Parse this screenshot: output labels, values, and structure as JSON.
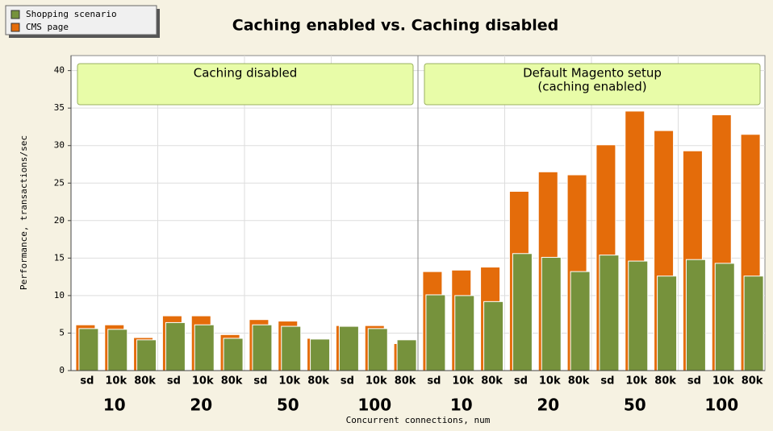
{
  "chart_data": {
    "type": "bar",
    "title": "Caching enabled vs. Caching disabled",
    "ylabel": "Performance, transactions/sec",
    "xlabel": "Concurrent connections, num",
    "categories": [
      "sd",
      "10k",
      "80k",
      "sd",
      "10k",
      "80k",
      "sd",
      "10k",
      "80k",
      "sd",
      "10k",
      "80k",
      "sd",
      "10k",
      "80k",
      "sd",
      "10k",
      "80k",
      "sd",
      "10k",
      "80k",
      "sd",
      "10k",
      "80k"
    ],
    "groups": [
      "10",
      "20",
      "50",
      "100",
      "10",
      "20",
      "50",
      "100"
    ],
    "annotations": [
      [
        "Caching disabled"
      ],
      [
        "Default Magento setup",
        "(caching enabled)"
      ]
    ],
    "series": [
      {
        "name": "Shopping scenario",
        "color": "#76923c",
        "values": [
          5.6,
          5.5,
          4.1,
          6.4,
          6.1,
          4.3,
          6.1,
          5.9,
          4.2,
          5.9,
          5.6,
          4.1,
          10.1,
          10.0,
          9.2,
          15.6,
          15.1,
          13.2,
          15.4,
          14.6,
          12.6,
          14.8,
          14.3,
          12.6
        ]
      },
      {
        "name": "CMS page",
        "color": "#e46c0a",
        "values": [
          6.1,
          6.1,
          4.4,
          7.3,
          7.3,
          4.8,
          6.8,
          6.6,
          4.3,
          6.0,
          6.0,
          3.6,
          13.2,
          13.4,
          13.8,
          23.9,
          26.5,
          26.1,
          30.1,
          34.6,
          32.0,
          29.3,
          34.1,
          31.5
        ]
      }
    ],
    "ylim": [
      0,
      42
    ],
    "yticks": [
      0,
      5,
      10,
      15,
      20,
      25,
      30,
      35,
      40
    ],
    "grid": true,
    "legend": "top-left"
  }
}
